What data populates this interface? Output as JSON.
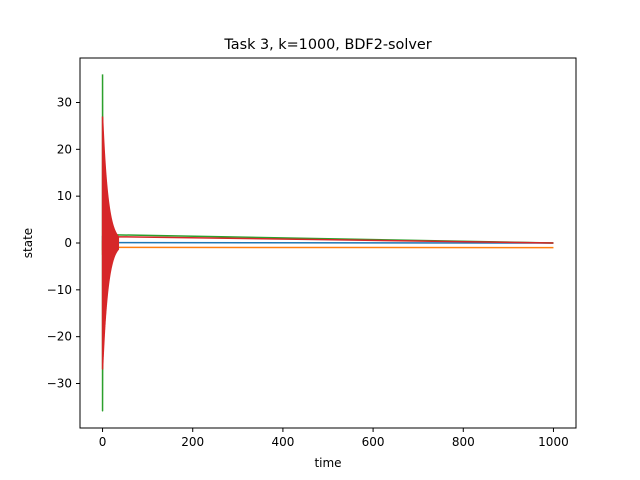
{
  "chart_data": {
    "type": "line",
    "title": "Task 3, k=1000, BDF2-solver",
    "xlabel": "time",
    "ylabel": "state",
    "xlim": [
      -50,
      1050
    ],
    "ylim": [
      -39.5,
      39.5
    ],
    "xticks": [
      0,
      200,
      400,
      600,
      800,
      1000
    ],
    "yticks": [
      -30,
      -20,
      -10,
      0,
      10,
      20,
      30
    ],
    "xtick_labels": [
      "0",
      "200",
      "400",
      "600",
      "800",
      "1000"
    ],
    "ytick_labels": [
      "−30",
      "−20",
      "−10",
      "0",
      "10",
      "20",
      "30"
    ],
    "grid": false,
    "series": [
      {
        "color": "#1f77b4",
        "x_range": [
          0,
          1000
        ],
        "transient_until": 2,
        "amplitude": 1.5,
        "steady": 0
      },
      {
        "color": "#ff7f0e",
        "x_range": [
          0,
          1000
        ],
        "transient_until": 2,
        "amplitude": 1.5,
        "steady": -1
      },
      {
        "color": "#2ca02c",
        "x_range": [
          0,
          1000
        ],
        "transient_until": 2,
        "amplitude": 36,
        "steady": 0
      },
      {
        "color": "#d62728",
        "x_range": [
          0,
          1000
        ],
        "transient_until": 35,
        "amplitude": 27,
        "steady": 0
      }
    ]
  }
}
